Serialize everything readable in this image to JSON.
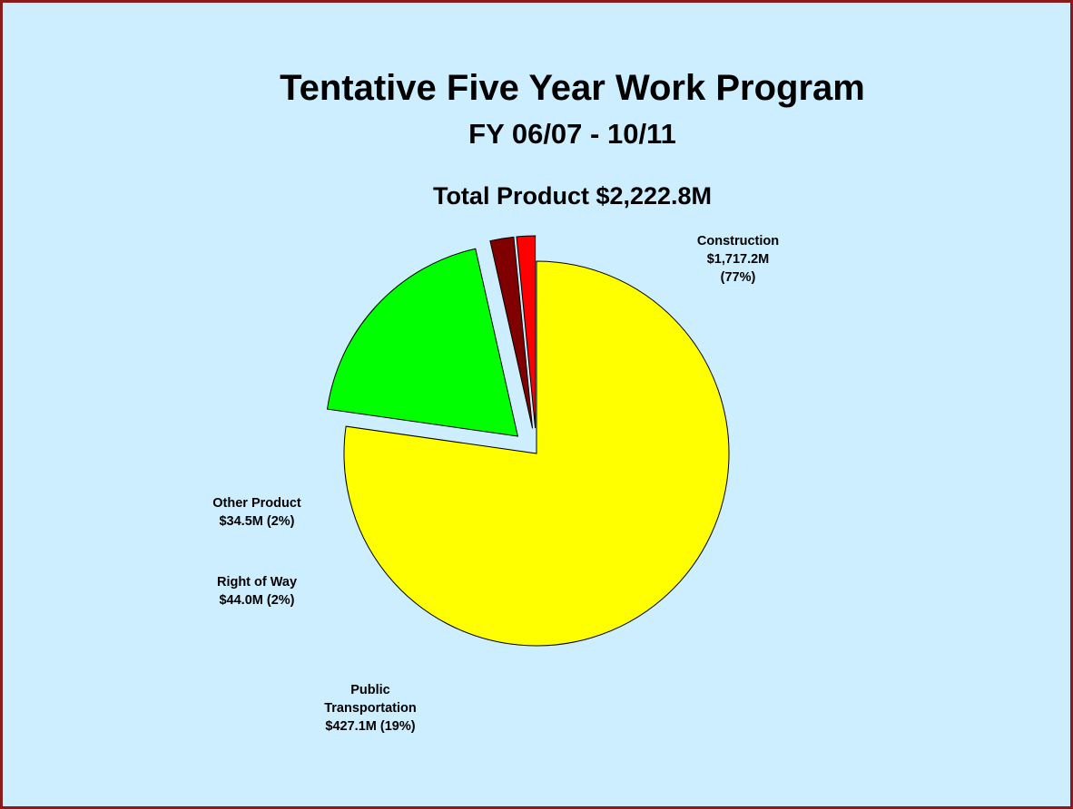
{
  "header": {
    "title": "Tentative Five Year Work Program",
    "subtitle": "FY 06/07 - 10/11",
    "total": "Total Product $2,222.8M"
  },
  "chart_data": {
    "type": "pie",
    "title": "Total Product $2,222.8M",
    "slices": [
      {
        "name": "Construction",
        "value": 1717.2,
        "value_label": "$1,717.2M",
        "percent_label": "(77%)",
        "color": "#ffff00",
        "exploded": false
      },
      {
        "name": "Public Transportation",
        "value": 427.1,
        "value_label": "$427.1M (19%)",
        "color": "#00ff00",
        "exploded": true
      },
      {
        "name": "Right of Way",
        "value": 44.0,
        "value_label": "$44.0M (2%)",
        "color": "#800000",
        "exploded": true
      },
      {
        "name": "Other Product",
        "value": 34.5,
        "value_label": "$34.5M (2%)",
        "color": "#ff0000",
        "exploded": true
      }
    ],
    "labels": {
      "construction": {
        "line1": "Construction",
        "line2": "$1,717.2M",
        "line3": "(77%)"
      },
      "public_transportation": {
        "line1": "Public",
        "line2": "Transportation",
        "line3": "$427.1M (19%)"
      },
      "right_of_way": {
        "line1": "Right of Way",
        "line2": "$44.0M (2%)"
      },
      "other_product": {
        "line1": "Other Product",
        "line2": "$34.5M (2%)"
      }
    }
  }
}
